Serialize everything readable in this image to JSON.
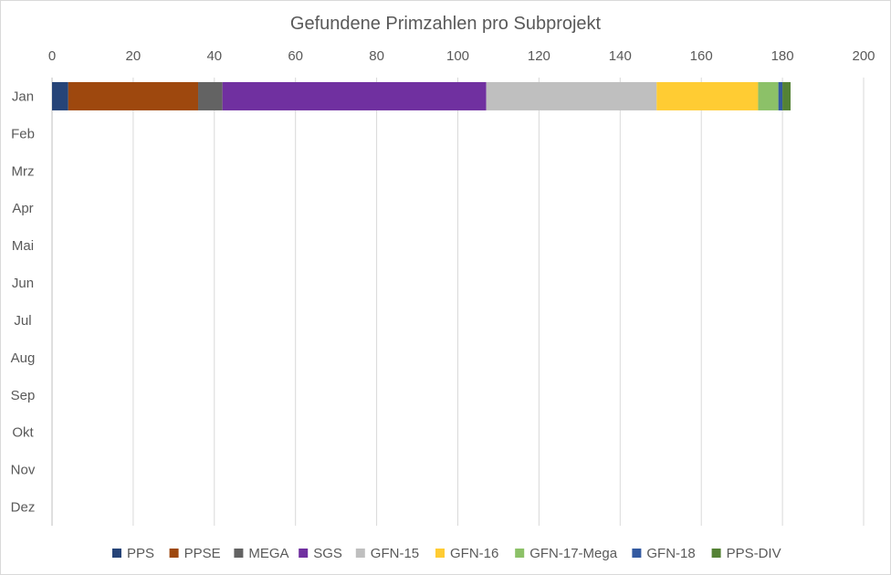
{
  "chart_data": {
    "type": "bar",
    "orientation": "horizontal",
    "stacked": true,
    "title": "Gefundene Primzahlen pro Subprojekt",
    "xlim": [
      0,
      200
    ],
    "x_ticks": [
      "0",
      "20",
      "40",
      "60",
      "80",
      "100",
      "120",
      "140",
      "160",
      "180",
      "200"
    ],
    "x_axis_position": "top",
    "grid": "vertical",
    "legend_position": "bottom",
    "categories": [
      "Jan",
      "Feb",
      "Mrz",
      "Apr",
      "Mai",
      "Jun",
      "Jul",
      "Aug",
      "Sep",
      "Okt",
      "Nov",
      "Dez"
    ],
    "series": [
      {
        "name": "PPS",
        "color": "#264478",
        "values": [
          4,
          0,
          0,
          0,
          0,
          0,
          0,
          0,
          0,
          0,
          0,
          0
        ]
      },
      {
        "name": "PPSE",
        "color": "#9E480E",
        "values": [
          32,
          0,
          0,
          0,
          0,
          0,
          0,
          0,
          0,
          0,
          0,
          0
        ]
      },
      {
        "name": "MEGA",
        "color": "#636363",
        "values": [
          6,
          0,
          0,
          0,
          0,
          0,
          0,
          0,
          0,
          0,
          0,
          0
        ]
      },
      {
        "name": "SGS",
        "color": "#7030A0",
        "values": [
          65,
          0,
          0,
          0,
          0,
          0,
          0,
          0,
          0,
          0,
          0,
          0
        ]
      },
      {
        "name": "GFN-15",
        "color": "#BFBFBF",
        "values": [
          42,
          0,
          0,
          0,
          0,
          0,
          0,
          0,
          0,
          0,
          0,
          0
        ]
      },
      {
        "name": "GFN-16",
        "color": "#FFCC33",
        "values": [
          25,
          0,
          0,
          0,
          0,
          0,
          0,
          0,
          0,
          0,
          0,
          0
        ]
      },
      {
        "name": "GFN-17-Mega",
        "color": "#8CC168",
        "values": [
          5,
          0,
          0,
          0,
          0,
          0,
          0,
          0,
          0,
          0,
          0,
          0
        ]
      },
      {
        "name": "GFN-18",
        "color": "#335AA1",
        "values": [
          1,
          0,
          0,
          0,
          0,
          0,
          0,
          0,
          0,
          0,
          0,
          0
        ]
      },
      {
        "name": "PPS-DIV",
        "color": "#548235",
        "values": [
          2,
          0,
          0,
          0,
          0,
          0,
          0,
          0,
          0,
          0,
          0,
          0
        ]
      }
    ]
  }
}
